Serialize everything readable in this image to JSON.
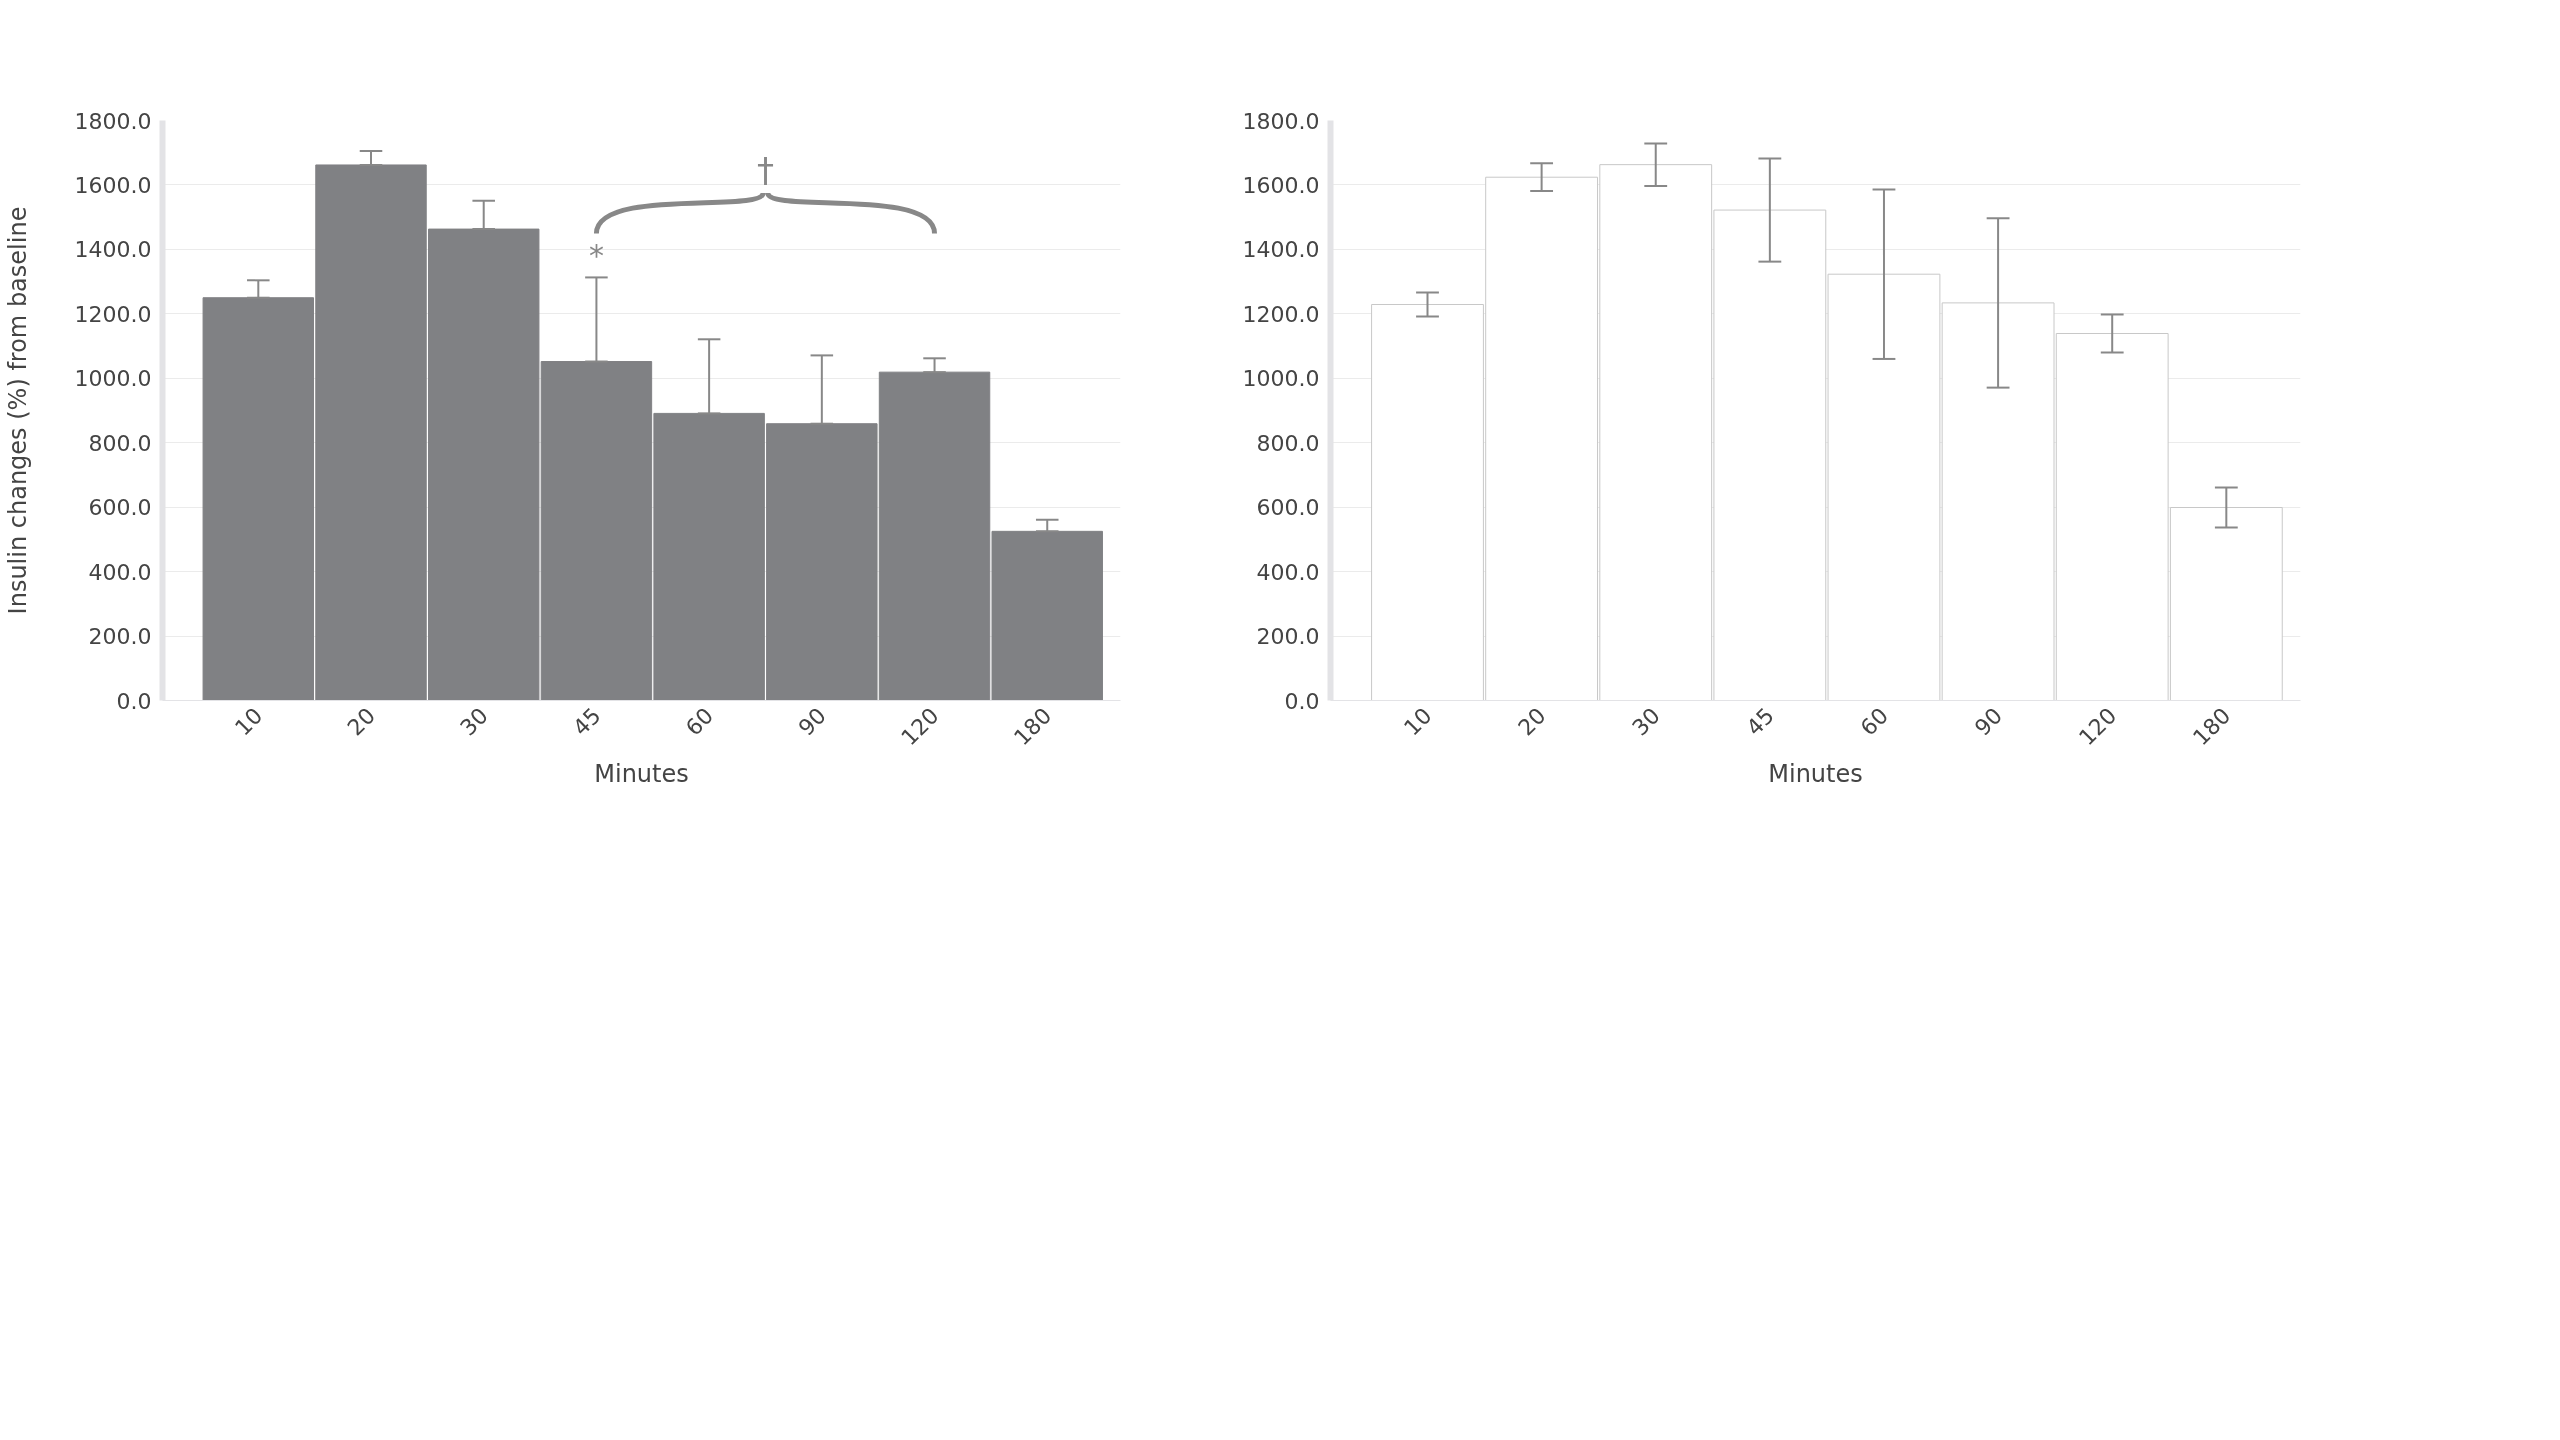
{
  "chart_data": [
    {
      "type": "bar",
      "xlabel": "Minutes",
      "ylabel": "Insulin changes (%) from baseline",
      "categories": [
        "10",
        "20",
        "30",
        "45",
        "60",
        "90",
        "120",
        "180"
      ],
      "series": [
        {
          "color": "#808184",
          "values": [
            1250,
            1662,
            1463,
            1052,
            891,
            859,
            1019,
            525
          ],
          "errors": [
            [
              1250,
              1304
            ],
            [
              1662,
              1705
            ],
            [
              1463,
              1551
            ],
            [
              1052,
              1313
            ],
            [
              891,
              1121
            ],
            [
              859,
              1071
            ],
            [
              1019,
              1062
            ],
            [
              525,
              561
            ]
          ]
        }
      ],
      "ylim": [
        0,
        1800
      ],
      "yticks": [
        {
          "value": 0,
          "label": "0.0"
        },
        {
          "value": 200,
          "label": "200.0"
        },
        {
          "value": 400,
          "label": "400.0"
        },
        {
          "value": 600,
          "label": "600.0"
        },
        {
          "value": 800,
          "label": "800.0"
        },
        {
          "value": 1000,
          "label": "1000.0"
        },
        {
          "value": 1200,
          "label": "1200.0"
        },
        {
          "value": 1400,
          "label": "1400.0"
        },
        {
          "value": 1600,
          "label": "1600.0"
        },
        {
          "value": 1800,
          "label": "1800.0"
        }
      ],
      "grid": "y",
      "annotations": [
        {
          "text": "*",
          "x": "45",
          "y": 1313
        },
        "†"
      ]
    },
    {
      "type": "bar",
      "xlabel": "Minutes",
      "categories": [
        "10",
        "20",
        "30",
        "45",
        "60",
        "90",
        "120",
        "180"
      ],
      "series": [
        {
          "color": "#ffffff",
          "values": [
            1229,
            1624,
            1663,
            1522,
            1323,
            1234,
            1139,
            599
          ],
          "errors": [
            37,
            43,
            66,
            160,
            263,
            263,
            59,
            62
          ]
        }
      ],
      "ylim": [
        0,
        1800
      ],
      "yticks": [
        {
          "value": 0,
          "label": "0.0"
        },
        {
          "value": 200,
          "label": "200.0"
        },
        {
          "value": 400,
          "label": "400.0"
        },
        {
          "value": 600,
          "label": "600.0"
        },
        {
          "value": 800,
          "label": "800.0"
        },
        {
          "value": 1000,
          "label": "1000.0"
        },
        {
          "value": 1200,
          "label": "1200.0"
        },
        {
          "value": 1400,
          "label": "1400.0"
        },
        {
          "value": 1600,
          "label": "1600.0"
        },
        {
          "value": 1800,
          "label": "1800.0"
        }
      ],
      "grid": "y"
    }
  ]
}
